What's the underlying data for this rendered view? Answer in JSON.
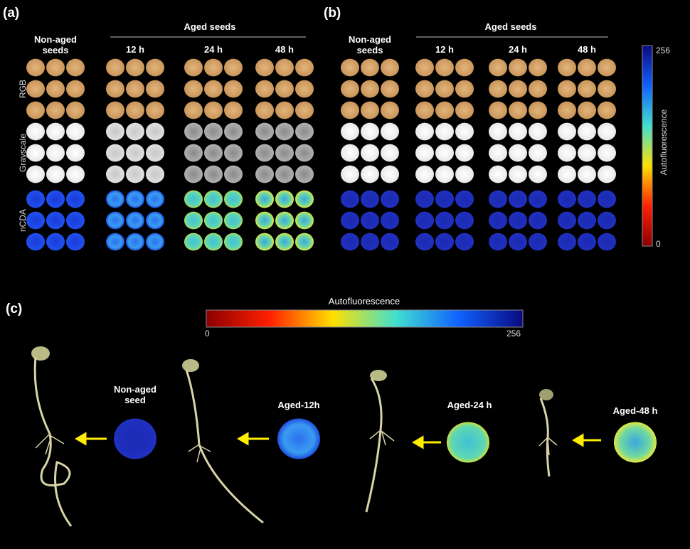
{
  "panel_a": {
    "label": "(a)",
    "group_header": "Aged seeds",
    "columns": [
      "Non-aged seeds",
      "12 h",
      "24 h",
      "48 h"
    ],
    "rows": [
      "RGB",
      "Grayscale",
      "nCDA"
    ]
  },
  "panel_b": {
    "label": "(b)",
    "group_header": "Aged seeds",
    "columns": [
      "Non-aged seeds",
      "12 h",
      "24 h",
      "48 h"
    ],
    "colorbar": {
      "title": "Autofluorescence",
      "max_label": "256",
      "min_label": "0"
    }
  },
  "panel_c": {
    "label": "(c)",
    "colorbar": {
      "title": "Autofluorescence",
      "min_label": "0",
      "max_label": "256"
    },
    "seeds": [
      "Non-aged seed",
      "Aged-12h",
      "Aged-24 h",
      "Aged-48 h"
    ]
  }
}
